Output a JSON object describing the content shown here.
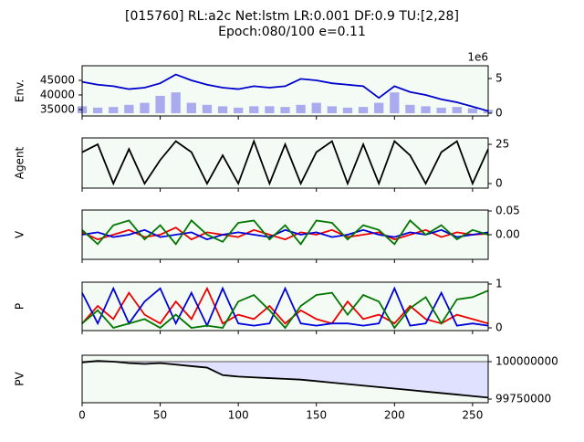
{
  "chart_data": [
    {
      "type": "line",
      "title": "[015760] RL:a2c Net:lstm LR:0.001 DF:0.9 TU:[2,28]",
      "subtitle": "Epoch:080/100 e=0.11",
      "ylabel": "Env.",
      "x": [
        0,
        10,
        20,
        30,
        40,
        50,
        60,
        70,
        80,
        90,
        100,
        110,
        120,
        130,
        140,
        150,
        160,
        170,
        180,
        190,
        200,
        210,
        220,
        230,
        240,
        250,
        260
      ],
      "series": [
        {
          "name": "price",
          "color": "#0000cc",
          "values": [
            44500,
            43500,
            43000,
            42000,
            42500,
            44000,
            47000,
            45000,
            43500,
            42500,
            42000,
            43000,
            42500,
            43000,
            45500,
            45000,
            44000,
            43500,
            43000,
            39000,
            43000,
            41000,
            40000,
            38500,
            37500,
            36000,
            34500
          ]
        },
        {
          "name": "volume",
          "type": "bar",
          "axis": "y2",
          "color": "#aaaaee",
          "values": [
            1,
            0.8,
            0.9,
            1.2,
            1.5,
            2.5,
            3,
            1.5,
            1.2,
            1,
            0.8,
            1,
            1,
            0.9,
            1.2,
            1.5,
            1,
            0.8,
            0.9,
            1.5,
            3,
            1.2,
            1,
            0.8,
            0.9,
            0.7,
            0.5
          ]
        }
      ],
      "ylim": [
        32800,
        50000
      ],
      "yticks": [
        35000,
        40000,
        45000
      ],
      "y2lim": [
        -0.4,
        6.84
      ],
      "y2ticks": [
        0,
        5
      ],
      "y2_offset": "1e6"
    },
    {
      "type": "line",
      "ylabel": "Agent",
      "ytick_side": "right",
      "x": [
        0,
        10,
        20,
        30,
        40,
        50,
        60,
        70,
        80,
        90,
        100,
        110,
        120,
        130,
        140,
        150,
        160,
        170,
        180,
        190,
        200,
        210,
        220,
        230,
        240,
        250,
        260
      ],
      "series": [
        {
          "name": "agent",
          "color": "#000000",
          "values": [
            20,
            25,
            0,
            22,
            0,
            15,
            27,
            20,
            0,
            18,
            0,
            27,
            0,
            25,
            0,
            20,
            27,
            0,
            25,
            0,
            27,
            18,
            0,
            20,
            27,
            0,
            22
          ]
        }
      ],
      "ylim": [
        -2.9,
        29.1
      ],
      "yticks": [
        0,
        25
      ]
    },
    {
      "type": "line",
      "ylabel": "V",
      "ytick_side": "right",
      "x": [
        0,
        10,
        20,
        30,
        40,
        50,
        60,
        70,
        80,
        90,
        100,
        110,
        120,
        130,
        140,
        150,
        160,
        170,
        180,
        190,
        200,
        210,
        220,
        230,
        240,
        250,
        260
      ],
      "series": [
        {
          "name": "v-red",
          "color": "#ee0000",
          "values": [
            0.005,
            -0.01,
            0.0,
            0.01,
            -0.005,
            0.0,
            0.015,
            -0.01,
            0.005,
            0.0,
            -0.005,
            0.01,
            0.0,
            -0.01,
            0.005,
            0.0,
            0.01,
            -0.005,
            0.0,
            0.005,
            -0.01,
            0.0,
            0.01,
            -0.005,
            0.005,
            0.0,
            0.002
          ]
        },
        {
          "name": "v-blue",
          "color": "#0000dd",
          "values": [
            0.0,
            0.005,
            -0.005,
            0.0,
            0.01,
            -0.005,
            0.0,
            0.005,
            -0.01,
            0.0,
            0.005,
            0.0,
            -0.005,
            0.01,
            0.0,
            0.005,
            -0.005,
            0.0,
            0.01,
            0.0,
            -0.005,
            0.005,
            0.0,
            0.01,
            -0.005,
            0.0,
            0.005
          ]
        },
        {
          "name": "v-green",
          "color": "#007700",
          "values": [
            0.01,
            -0.02,
            0.02,
            0.03,
            -0.01,
            0.02,
            -0.02,
            0.03,
            0.0,
            -0.015,
            0.025,
            0.03,
            -0.01,
            0.02,
            -0.02,
            0.03,
            0.025,
            -0.01,
            0.02,
            0.01,
            -0.02,
            0.03,
            0.0,
            0.02,
            -0.01,
            0.01,
            0.0
          ]
        }
      ],
      "ylim": [
        -0.052,
        0.052
      ],
      "yticks": [
        {
          "value": 0,
          "label": "0.00"
        },
        0.05
      ]
    },
    {
      "type": "line",
      "ylabel": "P",
      "ytick_side": "right",
      "x": [
        0,
        10,
        20,
        30,
        40,
        50,
        60,
        70,
        80,
        90,
        100,
        110,
        120,
        130,
        140,
        150,
        160,
        170,
        180,
        190,
        200,
        210,
        220,
        230,
        240,
        250,
        260
      ],
      "series": [
        {
          "name": "p-red",
          "color": "#ee0000",
          "values": [
            0.1,
            0.5,
            0.2,
            0.8,
            0.3,
            0.1,
            0.6,
            0.2,
            0.9,
            0.1,
            0.3,
            0.2,
            0.5,
            0.1,
            0.4,
            0.2,
            0.1,
            0.6,
            0.2,
            0.3,
            0.1,
            0.5,
            0.2,
            0.1,
            0.3,
            0.2,
            0.1
          ]
        },
        {
          "name": "p-blue",
          "color": "#0000dd",
          "values": [
            0.8,
            0.1,
            0.9,
            0.1,
            0.6,
            0.9,
            0.1,
            0.8,
            0.05,
            0.9,
            0.1,
            0.05,
            0.1,
            0.9,
            0.1,
            0.05,
            0.1,
            0.1,
            0.05,
            0.1,
            0.9,
            0.05,
            0.1,
            0.8,
            0.05,
            0.1,
            0.05
          ]
        },
        {
          "name": "p-green",
          "color": "#007700",
          "values": [
            0.1,
            0.4,
            0.0,
            0.1,
            0.2,
            0.0,
            0.3,
            0.0,
            0.05,
            0.0,
            0.6,
            0.75,
            0.4,
            0.0,
            0.5,
            0.75,
            0.8,
            0.3,
            0.75,
            0.6,
            0.0,
            0.45,
            0.7,
            0.1,
            0.65,
            0.7,
            0.85
          ]
        }
      ],
      "ylim": [
        -0.0625,
        1.042
      ],
      "yticks": [
        0,
        1
      ]
    },
    {
      "type": "line",
      "ylabel": "PV",
      "ytick_side": "right",
      "x": [
        0,
        10,
        20,
        30,
        40,
        50,
        60,
        70,
        80,
        90,
        100,
        110,
        120,
        130,
        140,
        150,
        160,
        170,
        180,
        190,
        200,
        210,
        220,
        230,
        240,
        250,
        260
      ],
      "series": [
        {
          "name": "pv",
          "color": "#000000",
          "fill": "#e0e0ff",
          "values": [
            99995000,
            100005000,
            100000000,
            99990000,
            99985000,
            99990000,
            99980000,
            99970000,
            99960000,
            99910000,
            99900000,
            99895000,
            99890000,
            99885000,
            99880000,
            99870000,
            99860000,
            99850000,
            99840000,
            99830000,
            99820000,
            99810000,
            99800000,
            99790000,
            99780000,
            99770000,
            99760000
          ]
        }
      ],
      "baseline": 100000000,
      "ylim": [
        99725600,
        100042700
      ],
      "yticks": [
        99750000,
        100000000
      ],
      "xlim": [
        0,
        260
      ],
      "xticks": [
        0,
        50,
        100,
        150,
        200,
        250
      ]
    }
  ]
}
